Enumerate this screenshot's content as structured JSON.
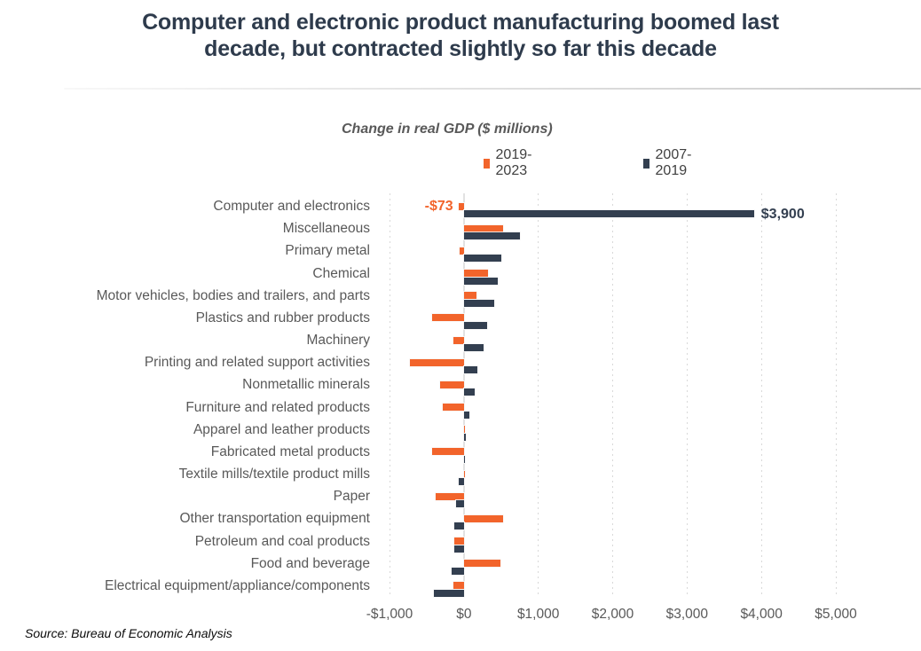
{
  "title": "Computer and electronic product manufacturing boomed last\ndecade, but contracted slightly so far this decade",
  "subtitle": "Change in real GDP ($ millions)",
  "source": "Source: Bureau of Economic Analysis",
  "colors": {
    "orange": "#f2642b",
    "navy": "#333f50",
    "title_text": "#2e3b4c",
    "axis_text": "#595959",
    "gridline": "#d9d9d9"
  },
  "legend": [
    {
      "label": "2019-2023",
      "color": "#f2642b"
    },
    {
      "label": "2007-2019",
      "color": "#333f50"
    }
  ],
  "chart_data": {
    "type": "bar",
    "orientation": "horizontal",
    "title": "Change in real GDP ($ millions)",
    "categories": [
      "Computer and electronics",
      "Miscellaneous",
      "Primary metal",
      "Chemical",
      "Motor vehicles, bodies and trailers, and parts",
      "Plastics and rubber products",
      "Machinery",
      "Printing and related support activities",
      "Nonmetallic minerals",
      "Furniture and related products",
      "Apparel and leather products",
      "Fabricated metal products",
      "Textile mills/textile product mills",
      "Paper",
      "Other transportation equipment",
      "Petroleum and coal products",
      "Food and beverage",
      "Electrical equipment/appliance/components"
    ],
    "series": [
      {
        "name": "2019-2023",
        "color": "#f2642b",
        "values": [
          -73,
          530,
          -60,
          320,
          170,
          -430,
          -140,
          -720,
          -320,
          -290,
          10,
          -430,
          10,
          -380,
          530,
          -135,
          490,
          -145
        ]
      },
      {
        "name": "2007-2019",
        "color": "#333f50",
        "values": [
          3900,
          750,
          500,
          460,
          410,
          310,
          270,
          180,
          140,
          75,
          25,
          15,
          -70,
          -105,
          -125,
          -135,
          -160,
          -400
        ]
      }
    ],
    "value_labels": [
      {
        "row": 0,
        "series": 0,
        "text": "-$73",
        "placement": "left",
        "color": "#f2642b"
      },
      {
        "row": 0,
        "series": 1,
        "text": "$3,900",
        "placement": "right",
        "color": "#333f50"
      }
    ],
    "xticks": [
      "-$1,000",
      "$0",
      "$1,000",
      "$2,000",
      "$3,000",
      "$4,000",
      "$5,000"
    ],
    "xtick_values": [
      -1000,
      0,
      1000,
      2000,
      3000,
      4000,
      5000
    ],
    "xlim": [
      -1000,
      5000
    ],
    "grid": "vertical-dashed",
    "legend_position": "top"
  }
}
